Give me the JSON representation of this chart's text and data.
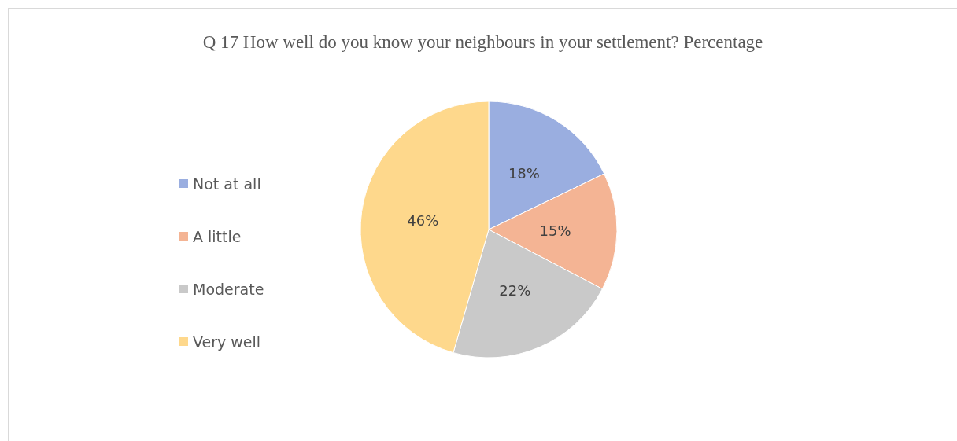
{
  "chart_data": {
    "type": "pie",
    "title": "Q 17 How well do you know your neighbours in your settlement? Percentage",
    "categories": [
      "Not at all",
      "A little",
      "Moderate",
      "Very well"
    ],
    "values": [
      18,
      15,
      22,
      46
    ],
    "value_labels": [
      "18%",
      "15%",
      "22%",
      "46%"
    ],
    "colors": [
      "#9aaee0",
      "#f4b494",
      "#c9c9c9",
      "#fed88c"
    ],
    "legend": "left"
  }
}
